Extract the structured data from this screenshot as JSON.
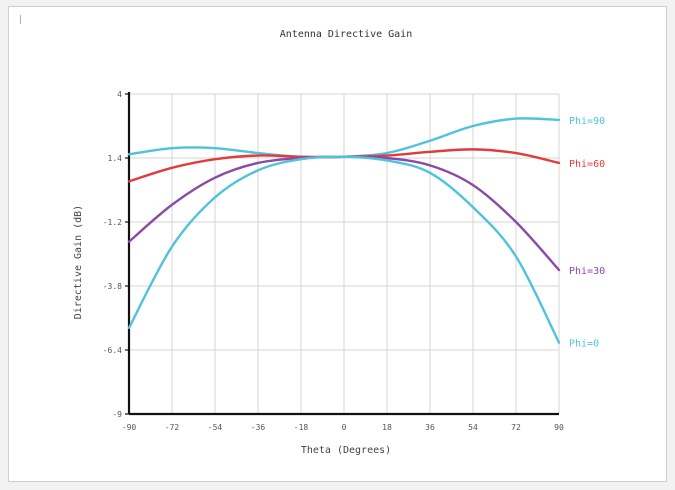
{
  "corner_mark": "|",
  "chart_data": {
    "type": "line",
    "title": "Antenna Directive Gain",
    "xlabel": "Theta (Degrees)",
    "ylabel": "Directive Gain (dB)",
    "xlim": [
      -90,
      90
    ],
    "ylim": [
      -9,
      4
    ],
    "xticks": [
      -90,
      -72,
      -54,
      -36,
      -18,
      0,
      18,
      36,
      54,
      72,
      90
    ],
    "yticks": [
      4,
      1.4,
      -1.2,
      -3.8,
      -6.4,
      -9
    ],
    "grid": true,
    "legend": "labels at right end of each line",
    "series": [
      {
        "name": "Phi=90",
        "color": "#4fc3dc",
        "x": [
          -90,
          -72,
          -54,
          -36,
          -18,
          0,
          18,
          36,
          54,
          72,
          90
        ],
        "y": [
          1.55,
          1.8,
          1.8,
          1.6,
          1.45,
          1.45,
          1.6,
          2.1,
          2.7,
          3.0,
          2.95
        ]
      },
      {
        "name": "Phi=60",
        "color": "#e23b3b",
        "x": [
          -90,
          -72,
          -54,
          -36,
          -18,
          0,
          18,
          36,
          54,
          72,
          90
        ],
        "y": [
          0.45,
          1.0,
          1.35,
          1.5,
          1.45,
          1.45,
          1.5,
          1.65,
          1.75,
          1.6,
          1.2
        ]
      },
      {
        "name": "Phi=30",
        "color": "#8a4aa6",
        "x": [
          -90,
          -72,
          -54,
          -36,
          -18,
          0,
          18,
          36,
          54,
          72,
          90
        ],
        "y": [
          -2.0,
          -0.5,
          0.6,
          1.2,
          1.4,
          1.45,
          1.4,
          1.1,
          0.3,
          -1.2,
          -3.15
        ]
      },
      {
        "name": "Phi=0",
        "color": "#4fc3dc",
        "x": [
          -90,
          -72,
          -54,
          -36,
          -18,
          0,
          18,
          36,
          54,
          72,
          90
        ],
        "y": [
          -5.5,
          -2.2,
          -0.2,
          0.9,
          1.35,
          1.45,
          1.3,
          0.8,
          -0.6,
          -2.6,
          -6.1
        ]
      }
    ]
  }
}
